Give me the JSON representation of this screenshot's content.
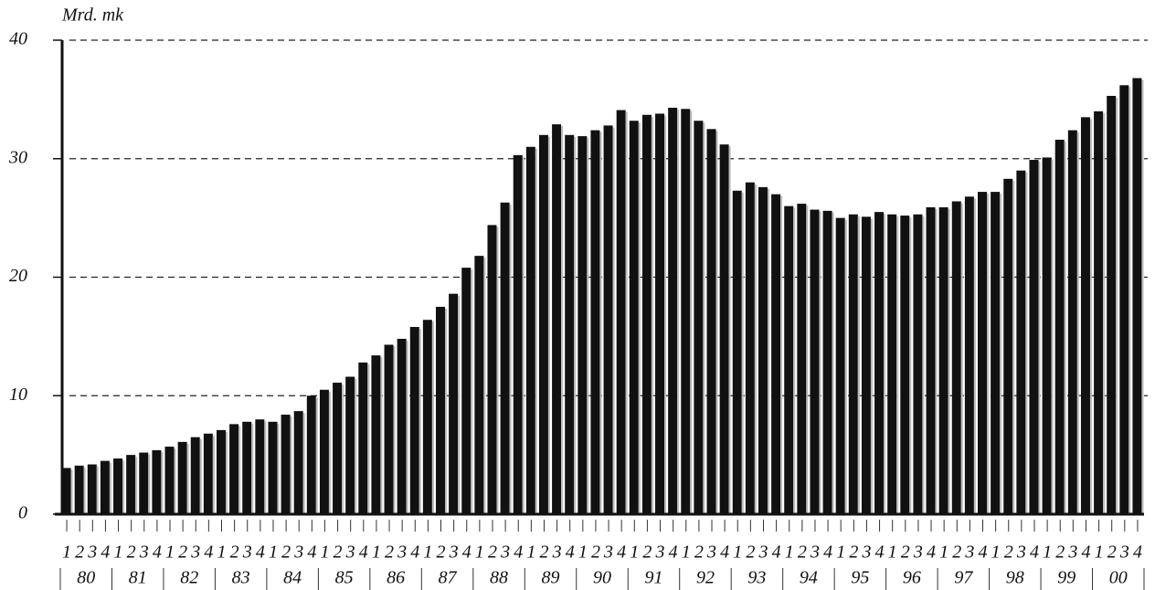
{
  "chart_data": {
    "type": "bar",
    "y_label": "Mrd. mk",
    "categories": [
      "1",
      "2",
      "3",
      "4",
      "1",
      "2",
      "3",
      "4",
      "1",
      "2",
      "3",
      "4",
      "1",
      "2",
      "3",
      "4",
      "1",
      "2",
      "3",
      "4",
      "1",
      "2",
      "3",
      "4",
      "1",
      "2",
      "3",
      "4",
      "1",
      "2",
      "3",
      "4",
      "1",
      "2",
      "3",
      "4",
      "1",
      "2",
      "3",
      "4",
      "1",
      "2",
      "3",
      "4",
      "1",
      "2",
      "3",
      "4",
      "1",
      "2",
      "3",
      "4",
      "1",
      "2",
      "3",
      "4",
      "1",
      "2",
      "3",
      "4",
      "1",
      "2",
      "3",
      "4",
      "1",
      "2",
      "3",
      "4",
      "1",
      "2",
      "3",
      "4",
      "1",
      "2",
      "3",
      "4",
      "1",
      "2",
      "3",
      "4",
      "1",
      "2",
      "3",
      "4"
    ],
    "groups": [
      "80",
      "81",
      "82",
      "83",
      "84",
      "85",
      "86",
      "87",
      "88",
      "89",
      "90",
      "91",
      "92",
      "93",
      "94",
      "95",
      "96",
      "97",
      "98",
      "99",
      "00"
    ],
    "values": [
      3.9,
      4.1,
      4.2,
      4.5,
      4.7,
      5.0,
      5.2,
      5.4,
      5.7,
      6.1,
      6.5,
      6.8,
      7.1,
      7.6,
      7.8,
      8.0,
      7.8,
      8.4,
      8.7,
      10.0,
      10.5,
      11.1,
      11.6,
      12.8,
      13.4,
      14.3,
      14.8,
      15.8,
      16.4,
      17.5,
      18.6,
      20.8,
      21.8,
      24.4,
      26.3,
      30.3,
      31.0,
      32.0,
      32.9,
      32.0,
      31.9,
      32.4,
      32.8,
      34.1,
      33.2,
      33.7,
      33.8,
      34.3,
      34.2,
      33.2,
      32.5,
      31.2,
      27.3,
      28.0,
      27.6,
      27.0,
      26.0,
      26.2,
      25.7,
      25.6,
      25.0,
      25.3,
      25.1,
      25.5,
      25.3,
      25.2,
      25.3,
      25.9,
      25.9,
      26.4,
      26.8,
      27.2,
      27.2,
      28.3,
      29.0,
      29.9,
      30.1,
      31.6,
      32.4,
      33.5,
      34.0,
      35.3,
      36.2,
      36.8
    ],
    "color": "#111111",
    "ylim": [
      0,
      40
    ],
    "yticks": [
      0,
      10,
      20,
      30,
      40
    ],
    "grid": true
  }
}
